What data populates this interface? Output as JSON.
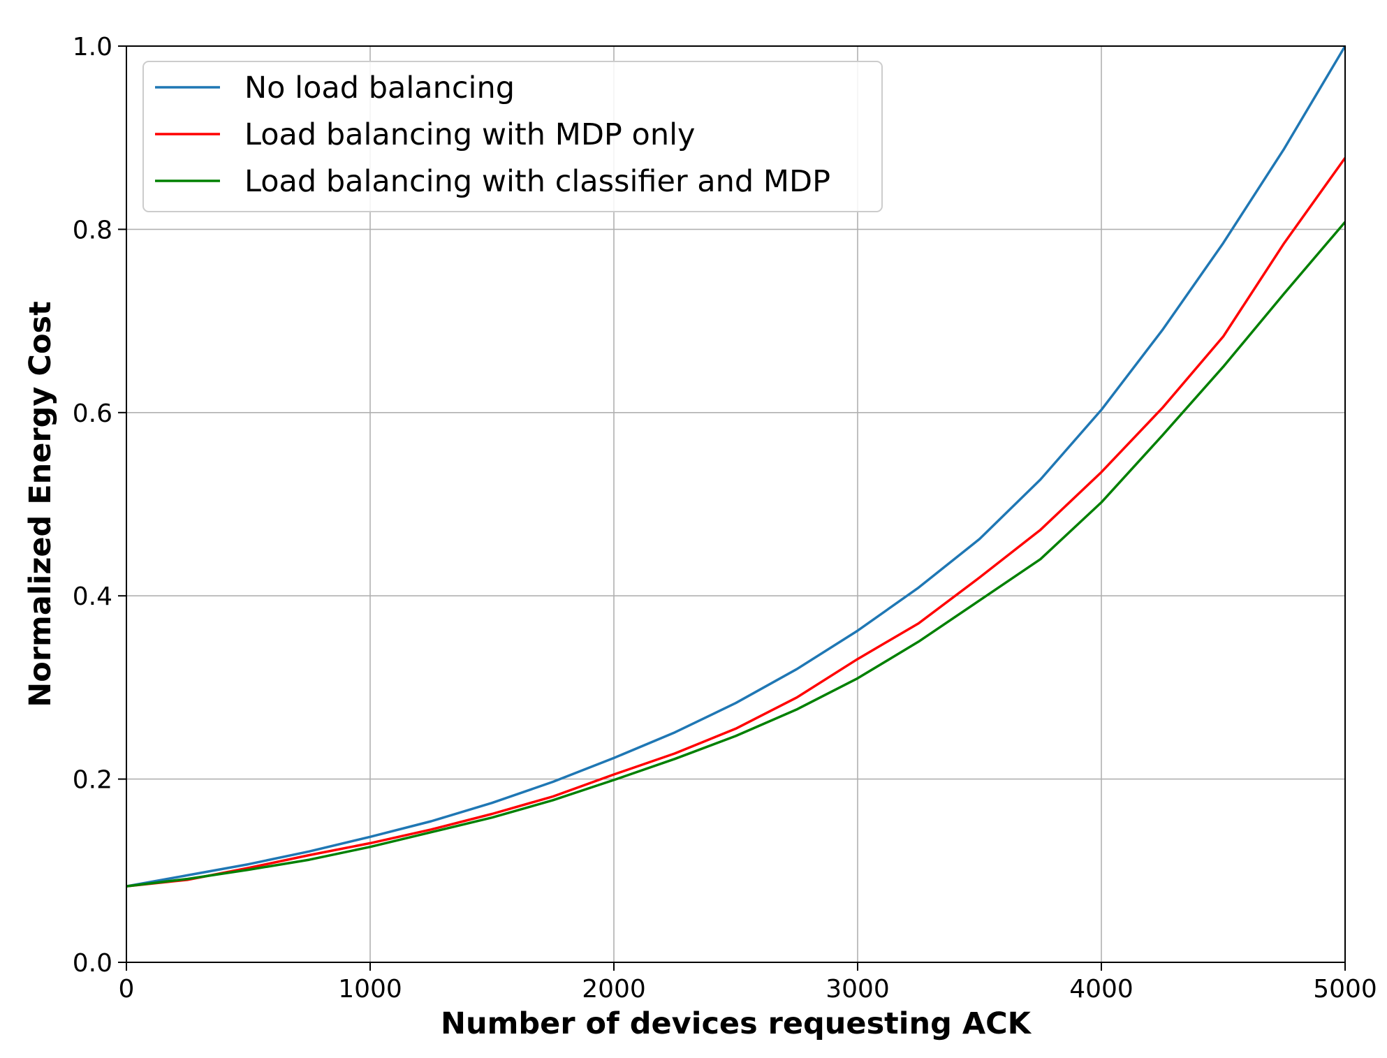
{
  "chart_data": {
    "type": "line",
    "title": "",
    "xlabel": "Number of devices requesting ACK",
    "ylabel": "Normalized Energy Cost",
    "xlim": [
      0,
      5000
    ],
    "ylim": [
      0.0,
      1.0
    ],
    "grid": true,
    "legend_position": "top-left",
    "x_ticks": [
      {
        "value": 0,
        "label": "0"
      },
      {
        "value": 1000,
        "label": "1000"
      },
      {
        "value": 2000,
        "label": "2000"
      },
      {
        "value": 3000,
        "label": "3000"
      },
      {
        "value": 4000,
        "label": "4000"
      },
      {
        "value": 5000,
        "label": "5000"
      }
    ],
    "y_ticks": [
      {
        "value": 0.0,
        "label": "0.0"
      },
      {
        "value": 0.2,
        "label": "0.2"
      },
      {
        "value": 0.4,
        "label": "0.4"
      },
      {
        "value": 0.6,
        "label": "0.6"
      },
      {
        "value": 0.8,
        "label": "0.8"
      },
      {
        "value": 1.0,
        "label": "1.0"
      }
    ],
    "x": [
      0,
      250,
      500,
      750,
      1000,
      1250,
      1500,
      1750,
      2000,
      2250,
      2500,
      2750,
      3000,
      3250,
      3500,
      3750,
      4000,
      4250,
      4500,
      4750,
      5000
    ],
    "series": [
      {
        "name": "No load balancing",
        "color": "#1f77b4",
        "values": [
          0.083,
          0.095,
          0.107,
          0.121,
          0.137,
          0.154,
          0.174,
          0.197,
          0.223,
          0.251,
          0.283,
          0.32,
          0.362,
          0.409,
          0.462,
          0.527,
          0.603,
          0.69,
          0.785,
          0.888,
          1.0
        ]
      },
      {
        "name": "Load balancing with MDP only",
        "color": "#ff0000",
        "values": [
          0.083,
          0.09,
          0.103,
          0.117,
          0.13,
          0.145,
          0.162,
          0.181,
          0.205,
          0.228,
          0.255,
          0.289,
          0.331,
          0.37,
          0.42,
          0.472,
          0.535,
          0.605,
          0.683,
          0.785,
          0.878
        ]
      },
      {
        "name": "Load balancing with classifier and MDP",
        "color": "#008000",
        "values": [
          0.083,
          0.091,
          0.101,
          0.112,
          0.126,
          0.142,
          0.158,
          0.177,
          0.199,
          0.222,
          0.247,
          0.276,
          0.31,
          0.35,
          0.395,
          0.44,
          0.502,
          0.575,
          0.65,
          0.73,
          0.808
        ]
      }
    ]
  }
}
